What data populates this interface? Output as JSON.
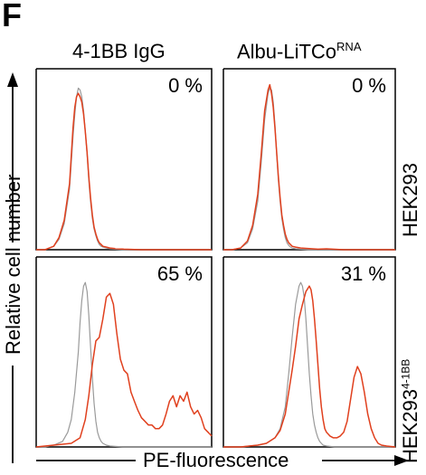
{
  "figure": {
    "panel_letter": "F",
    "columns": [
      "4-1BB IgG",
      "Albu-LiTCo"
    ],
    "column2_superscript": "RNA",
    "rows": [
      "HEK293",
      "HEK293"
    ],
    "row2_superscript": "4-1BB",
    "ylabel": "Relative cell number",
    "xlabel": "PE-fluorescence",
    "colors": {
      "control": "#9a9a9a",
      "sample": "#e0401e",
      "axis": "#000000"
    }
  },
  "chart_data": [
    {
      "type": "line",
      "panel": "4-1BB IgG / HEK293",
      "annotation": "0 %",
      "x_range": [
        0,
        100
      ],
      "y_range": [
        0,
        100
      ],
      "series": [
        {
          "color": "#9a9a9a",
          "x": [
            0,
            5,
            10,
            13,
            16,
            19,
            20,
            21,
            22,
            23,
            24,
            25,
            26,
            27,
            28,
            29,
            30,
            31,
            32,
            33,
            34,
            35,
            36,
            37,
            38,
            40,
            42,
            45,
            50,
            60,
            70,
            80,
            90,
            100
          ],
          "y": [
            0,
            0,
            2,
            6,
            15,
            35,
            50,
            65,
            78,
            88,
            93,
            92,
            88,
            80,
            68,
            55,
            40,
            28,
            18,
            12,
            8,
            5,
            3,
            2,
            1.5,
            1,
            0.5,
            0.3,
            0,
            0,
            0,
            0,
            0,
            0
          ]
        },
        {
          "color": "#e0401e",
          "x": [
            0,
            5,
            10,
            13,
            16,
            19,
            20,
            21,
            22,
            23,
            24,
            25,
            26,
            27,
            28,
            29,
            30,
            31,
            32,
            33,
            34,
            35,
            36,
            37,
            38,
            40,
            42,
            45,
            50,
            60,
            70,
            80,
            90,
            100
          ],
          "y": [
            0,
            0,
            2,
            7,
            17,
            38,
            54,
            70,
            82,
            88,
            90,
            88,
            85,
            78,
            68,
            56,
            42,
            30,
            20,
            13,
            9,
            6,
            4,
            3,
            2,
            1.5,
            1,
            0.6,
            0.3,
            0,
            0,
            0,
            0,
            0
          ]
        }
      ]
    },
    {
      "type": "line",
      "panel": "Albu-LiTCo RNA / HEK293",
      "annotation": "0 %",
      "x_range": [
        0,
        100
      ],
      "y_range": [
        0,
        100
      ],
      "series": [
        {
          "color": "#9a9a9a",
          "x": [
            0,
            5,
            10,
            14,
            17,
            20,
            22,
            24,
            26,
            27,
            28,
            29,
            30,
            31,
            32,
            33,
            34,
            35,
            36,
            37,
            38,
            39,
            40,
            42,
            45,
            50,
            55,
            60,
            70,
            80,
            100
          ],
          "y": [
            0,
            0,
            1,
            4,
            12,
            28,
            50,
            75,
            90,
            93,
            92,
            85,
            72,
            55,
            40,
            28,
            18,
            12,
            7,
            4,
            2.5,
            1.5,
            1,
            0.5,
            0.3,
            0,
            0,
            0,
            0,
            0,
            0
          ]
        },
        {
          "color": "#e0401e",
          "x": [
            0,
            5,
            10,
            14,
            17,
            20,
            22,
            24,
            26,
            27,
            28,
            29,
            30,
            31,
            32,
            33,
            34,
            35,
            36,
            37,
            38,
            39,
            40,
            42,
            45,
            50,
            55,
            60,
            70,
            80,
            100
          ],
          "y": [
            0,
            0,
            1,
            5,
            14,
            32,
            55,
            80,
            92,
            95,
            90,
            82,
            70,
            56,
            42,
            30,
            20,
            14,
            9,
            6,
            4,
            3,
            2,
            1.5,
            1,
            0.6,
            0.3,
            0.5,
            0,
            0,
            0
          ]
        }
      ]
    },
    {
      "type": "line",
      "panel": "4-1BB IgG / HEK293 4-1BB",
      "annotation": "65 %",
      "x_range": [
        0,
        100
      ],
      "y_range": [
        0,
        100
      ],
      "series": [
        {
          "color": "#9a9a9a",
          "x": [
            0,
            5,
            10,
            15,
            18,
            20,
            22,
            24,
            25,
            26,
            27,
            28,
            29,
            30,
            31,
            32,
            33,
            34,
            35,
            36,
            37,
            38,
            40,
            42,
            45,
            50,
            100
          ],
          "y": [
            0,
            0,
            1,
            3,
            8,
            15,
            30,
            52,
            68,
            80,
            88,
            90,
            85,
            72,
            55,
            38,
            24,
            14,
            8,
            5,
            3,
            2,
            1,
            0.5,
            0.3,
            0,
            0
          ]
        },
        {
          "color": "#e0401e",
          "x": [
            0,
            10,
            20,
            25,
            28,
            30,
            32,
            34,
            36,
            38,
            40,
            42,
            44,
            46,
            48,
            50,
            52,
            54,
            56,
            58,
            60,
            62,
            64,
            66,
            68,
            70,
            72,
            74,
            76,
            78,
            80,
            82,
            84,
            86,
            88,
            90,
            92,
            94,
            96,
            98,
            100
          ],
          "y": [
            0,
            1,
            2,
            5,
            15,
            28,
            45,
            58,
            60,
            70,
            82,
            84,
            78,
            62,
            48,
            42,
            40,
            30,
            25,
            20,
            16,
            14,
            12,
            12,
            10,
            10,
            12,
            18,
            25,
            28,
            22,
            28,
            25,
            30,
            22,
            18,
            20,
            16,
            10,
            8,
            6
          ]
        }
      ]
    },
    {
      "type": "line",
      "panel": "Albu-LiTCo RNA / HEK293 4-1BB",
      "annotation": "31 %",
      "x_range": [
        0,
        100
      ],
      "y_range": [
        0,
        100
      ],
      "series": [
        {
          "color": "#9a9a9a",
          "x": [
            0,
            10,
            20,
            25,
            30,
            33,
            36,
            38,
            40,
            42,
            44,
            45,
            46,
            47,
            48,
            49,
            50,
            51,
            52,
            53,
            54,
            55,
            56,
            57,
            58,
            60,
            62,
            65,
            70,
            100
          ],
          "y": [
            0,
            0,
            1,
            2,
            5,
            10,
            22,
            40,
            60,
            78,
            88,
            90,
            88,
            82,
            70,
            55,
            40,
            28,
            18,
            12,
            8,
            5,
            3,
            2,
            1,
            0.5,
            0.3,
            0,
            0,
            0
          ]
        },
        {
          "color": "#e0401e",
          "x": [
            0,
            10,
            20,
            25,
            30,
            33,
            36,
            38,
            40,
            42,
            44,
            46,
            48,
            50,
            51,
            52,
            53,
            54,
            55,
            56,
            57,
            58,
            59,
            60,
            62,
            64,
            66,
            68,
            70,
            72,
            74,
            76,
            78,
            80,
            82,
            84,
            86,
            88,
            90,
            92,
            95,
            100
          ],
          "y": [
            0,
            0,
            1,
            2,
            5,
            9,
            18,
            30,
            42,
            55,
            70,
            78,
            85,
            88,
            86,
            80,
            70,
            58,
            45,
            32,
            22,
            15,
            10,
            8,
            6,
            5,
            5,
            6,
            8,
            14,
            26,
            38,
            44,
            40,
            30,
            18,
            10,
            5,
            2,
            1,
            0.5,
            0
          ]
        }
      ]
    }
  ]
}
